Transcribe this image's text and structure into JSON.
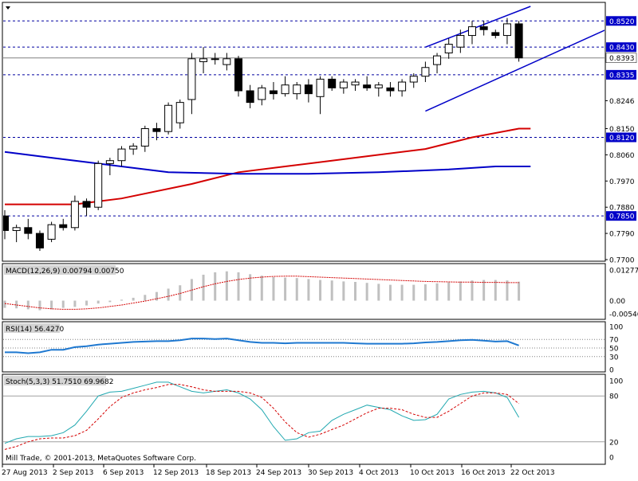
{
  "chart_data": [
    {
      "type": "candlestick",
      "x_tick_labels": [
        "27 Aug 2013",
        "2 Sep 2013",
        "6 Sep 2013",
        "12 Sep 2013",
        "18 Sep 2013",
        "24 Sep 2013",
        "30 Sep 2013",
        "4 Oct 2013",
        "10 Oct 2013",
        "16 Oct 2013",
        "22 Oct 2013"
      ],
      "y_tick_labels": [
        "0.8520",
        "0.8430",
        "0.8393",
        "0.8335",
        "0.8246",
        "0.8150",
        "0.8120",
        "0.8060",
        "0.7970",
        "0.7880",
        "0.7850",
        "0.7790",
        "0.7700"
      ],
      "ylim": [
        0.77,
        0.857
      ],
      "current_price": "0.8393",
      "horizontal_levels": [
        {
          "label": "0.8520",
          "value": 0.852
        },
        {
          "label": "0.8430",
          "value": 0.843
        },
        {
          "label": "0.8335",
          "value": 0.8335
        },
        {
          "label": "0.8120",
          "value": 0.812
        },
        {
          "label": "0.7850",
          "value": 0.785
        }
      ],
      "candles": [
        {
          "o": 0.785,
          "h": 0.787,
          "l": 0.777,
          "c": 0.78
        },
        {
          "o": 0.78,
          "h": 0.782,
          "l": 0.776,
          "c": 0.781
        },
        {
          "o": 0.781,
          "h": 0.784,
          "l": 0.777,
          "c": 0.779
        },
        {
          "o": 0.779,
          "h": 0.78,
          "l": 0.773,
          "c": 0.774
        },
        {
          "o": 0.777,
          "h": 0.783,
          "l": 0.776,
          "c": 0.782
        },
        {
          "o": 0.782,
          "h": 0.784,
          "l": 0.78,
          "c": 0.781
        },
        {
          "o": 0.781,
          "h": 0.792,
          "l": 0.78,
          "c": 0.79
        },
        {
          "o": 0.79,
          "h": 0.791,
          "l": 0.785,
          "c": 0.788
        },
        {
          "o": 0.788,
          "h": 0.804,
          "l": 0.787,
          "c": 0.803
        },
        {
          "o": 0.803,
          "h": 0.805,
          "l": 0.799,
          "c": 0.804
        },
        {
          "o": 0.804,
          "h": 0.809,
          "l": 0.802,
          "c": 0.808
        },
        {
          "o": 0.808,
          "h": 0.81,
          "l": 0.806,
          "c": 0.809
        },
        {
          "o": 0.809,
          "h": 0.816,
          "l": 0.807,
          "c": 0.815
        },
        {
          "o": 0.815,
          "h": 0.817,
          "l": 0.811,
          "c": 0.814
        },
        {
          "o": 0.814,
          "h": 0.824,
          "l": 0.813,
          "c": 0.823
        },
        {
          "o": 0.817,
          "h": 0.825,
          "l": 0.815,
          "c": 0.824
        },
        {
          "o": 0.825,
          "h": 0.841,
          "l": 0.82,
          "c": 0.839
        },
        {
          "o": 0.838,
          "h": 0.843,
          "l": 0.834,
          "c": 0.839
        },
        {
          "o": 0.839,
          "h": 0.841,
          "l": 0.837,
          "c": 0.839
        },
        {
          "o": 0.837,
          "h": 0.841,
          "l": 0.835,
          "c": 0.839
        },
        {
          "o": 0.839,
          "h": 0.84,
          "l": 0.826,
          "c": 0.828
        },
        {
          "o": 0.828,
          "h": 0.83,
          "l": 0.822,
          "c": 0.824
        },
        {
          "o": 0.825,
          "h": 0.83,
          "l": 0.823,
          "c": 0.829
        },
        {
          "o": 0.828,
          "h": 0.831,
          "l": 0.825,
          "c": 0.827
        },
        {
          "o": 0.827,
          "h": 0.833,
          "l": 0.826,
          "c": 0.83
        },
        {
          "o": 0.827,
          "h": 0.831,
          "l": 0.825,
          "c": 0.83
        },
        {
          "o": 0.83,
          "h": 0.832,
          "l": 0.824,
          "c": 0.827
        },
        {
          "o": 0.826,
          "h": 0.833,
          "l": 0.82,
          "c": 0.832
        },
        {
          "o": 0.832,
          "h": 0.833,
          "l": 0.828,
          "c": 0.829
        },
        {
          "o": 0.829,
          "h": 0.832,
          "l": 0.827,
          "c": 0.831
        },
        {
          "o": 0.83,
          "h": 0.832,
          "l": 0.828,
          "c": 0.831
        },
        {
          "o": 0.83,
          "h": 0.833,
          "l": 0.828,
          "c": 0.829
        },
        {
          "o": 0.829,
          "h": 0.831,
          "l": 0.826,
          "c": 0.83
        },
        {
          "o": 0.829,
          "h": 0.831,
          "l": 0.826,
          "c": 0.828
        },
        {
          "o": 0.828,
          "h": 0.832,
          "l": 0.826,
          "c": 0.831
        },
        {
          "o": 0.831,
          "h": 0.834,
          "l": 0.829,
          "c": 0.833
        },
        {
          "o": 0.833,
          "h": 0.838,
          "l": 0.831,
          "c": 0.836
        },
        {
          "o": 0.837,
          "h": 0.841,
          "l": 0.834,
          "c": 0.84
        },
        {
          "o": 0.841,
          "h": 0.846,
          "l": 0.839,
          "c": 0.844
        },
        {
          "o": 0.843,
          "h": 0.849,
          "l": 0.841,
          "c": 0.847
        },
        {
          "o": 0.847,
          "h": 0.852,
          "l": 0.844,
          "c": 0.85
        },
        {
          "o": 0.85,
          "h": 0.852,
          "l": 0.847,
          "c": 0.849
        },
        {
          "o": 0.848,
          "h": 0.849,
          "l": 0.846,
          "c": 0.847
        },
        {
          "o": 0.847,
          "h": 0.853,
          "l": 0.844,
          "c": 0.851
        },
        {
          "o": 0.851,
          "h": 0.852,
          "l": 0.838,
          "c": 0.8393
        }
      ],
      "moving_averages": [
        {
          "color": "#d40000",
          "points": [
            [
              0,
              0.789
            ],
            [
              6,
              0.789
            ],
            [
              10,
              0.791
            ],
            [
              16,
              0.796
            ],
            [
              20,
              0.8
            ],
            [
              24,
              0.802
            ],
            [
              28,
              0.804
            ],
            [
              32,
              0.806
            ],
            [
              36,
              0.808
            ],
            [
              40,
              0.812
            ],
            [
              44,
              0.815
            ],
            [
              45,
              0.815
            ]
          ]
        },
        {
          "color": "#0000c8",
          "points": [
            [
              0,
              0.807
            ],
            [
              4,
              0.805
            ],
            [
              8,
              0.803
            ],
            [
              14,
              0.8
            ],
            [
              20,
              0.7995
            ],
            [
              26,
              0.7995
            ],
            [
              32,
              0.8
            ],
            [
              38,
              0.801
            ],
            [
              42,
              0.802
            ],
            [
              45,
              0.802
            ]
          ]
        }
      ],
      "trend_lines": [
        {
          "color": "#0000c8",
          "from": [
            36,
            0.843
          ],
          "to": [
            45,
            0.857
          ]
        },
        {
          "color": "#0000c8",
          "from": [
            36,
            0.821
          ],
          "to": [
            52,
            0.85
          ]
        }
      ]
    },
    {
      "type": "bar",
      "title": "MACD(12,26,9) 0.00794 0.00750",
      "y_tick_labels": [
        "0.01277",
        "0.00",
        "-0.00546"
      ],
      "ylim": [
        -0.00546,
        0.01277
      ],
      "histogram": [
        -0.003,
        -0.0032,
        -0.0036,
        -0.004,
        -0.0036,
        -0.003,
        -0.0026,
        -0.002,
        -0.0012,
        -0.0006,
        0.0004,
        0.0012,
        0.0024,
        0.0036,
        0.005,
        0.0064,
        0.009,
        0.0108,
        0.0118,
        0.0122,
        0.0118,
        0.011,
        0.0104,
        0.0098,
        0.0096,
        0.0094,
        0.009,
        0.0086,
        0.0084,
        0.008,
        0.0078,
        0.0074,
        0.007,
        0.0066,
        0.0066,
        0.0066,
        0.0068,
        0.0072,
        0.0076,
        0.008,
        0.0084,
        0.0086,
        0.0086,
        0.0084,
        0.0079
      ],
      "signal": [
        -0.0012,
        -0.0018,
        -0.0024,
        -0.003,
        -0.0034,
        -0.0036,
        -0.0036,
        -0.0034,
        -0.003,
        -0.0024,
        -0.0018,
        -0.001,
        -0.0002,
        0.0008,
        0.0018,
        0.003,
        0.0044,
        0.0058,
        0.007,
        0.008,
        0.0088,
        0.0094,
        0.0098,
        0.0101,
        0.0102,
        0.0102,
        0.01,
        0.0098,
        0.0096,
        0.0094,
        0.0092,
        0.009,
        0.0088,
        0.0086,
        0.0084,
        0.0082,
        0.008,
        0.0079,
        0.0078,
        0.0077,
        0.0077,
        0.0076,
        0.0076,
        0.0075,
        0.0075
      ]
    },
    {
      "type": "line",
      "title": "RSI(14) 56.4270",
      "y_tick_labels": [
        "100",
        "70",
        "50",
        "30",
        "0"
      ],
      "ylim": [
        0,
        100
      ],
      "levels": [
        70,
        50,
        30
      ],
      "values": [
        40,
        40,
        38,
        40,
        46,
        46,
        52,
        54,
        58,
        60,
        62,
        64,
        65,
        66,
        66,
        68,
        72,
        72,
        71,
        72,
        68,
        64,
        62,
        62,
        61,
        62,
        62,
        62,
        62,
        62,
        61,
        60,
        60,
        60,
        60,
        61,
        63,
        64,
        66,
        68,
        69,
        67,
        65,
        66,
        56
      ]
    },
    {
      "type": "line",
      "title": "Stoch(5,3,3) 51.7510 69.9682",
      "y_tick_labels": [
        "100",
        "80",
        "20",
        "0"
      ],
      "ylim": [
        0,
        100
      ],
      "levels": [
        80,
        20
      ],
      "series": [
        {
          "color": "#20a8b0",
          "values": [
            18,
            24,
            27,
            27,
            28,
            32,
            42,
            60,
            80,
            85,
            86,
            90,
            94,
            98,
            98,
            92,
            86,
            84,
            86,
            88,
            84,
            76,
            62,
            40,
            22,
            24,
            32,
            34,
            48,
            56,
            62,
            68,
            65,
            62,
            54,
            48,
            49,
            56,
            76,
            82,
            85,
            86,
            84,
            78,
            52
          ]
        },
        {
          "color": "#d40000",
          "values": [
            10,
            14,
            20,
            24,
            25,
            25,
            28,
            35,
            50,
            66,
            78,
            84,
            88,
            91,
            95,
            95,
            92,
            88,
            86,
            86,
            86,
            84,
            78,
            64,
            46,
            32,
            26,
            30,
            36,
            42,
            50,
            58,
            64,
            64,
            62,
            56,
            52,
            52,
            60,
            70,
            80,
            84,
            84,
            82,
            70
          ]
        }
      ]
    }
  ],
  "copyright": "Mill Trade, © 2001-2013, MetaQuotes Software Corp."
}
